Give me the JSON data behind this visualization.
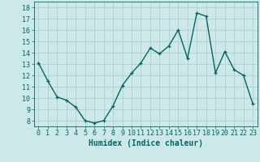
{
  "x": [
    0,
    1,
    2,
    3,
    4,
    5,
    6,
    7,
    8,
    9,
    10,
    11,
    12,
    13,
    14,
    15,
    16,
    17,
    18,
    19,
    20,
    21,
    22,
    23
  ],
  "y": [
    13.1,
    11.5,
    10.1,
    9.8,
    9.2,
    8.0,
    7.8,
    8.0,
    9.3,
    11.1,
    12.2,
    13.1,
    14.4,
    13.9,
    14.6,
    16.0,
    13.5,
    17.5,
    17.2,
    12.2,
    14.1,
    12.5,
    12.0,
    9.5
  ],
  "bg_color": "#cce8e8",
  "line_color": "#006666",
  "marker_color": "#006666",
  "grid_color": "#aacccc",
  "xlabel": "Humidex (Indice chaleur)",
  "ylim": [
    7.5,
    18.5
  ],
  "xlim": [
    -0.5,
    23.5
  ],
  "yticks": [
    8,
    9,
    10,
    11,
    12,
    13,
    14,
    15,
    16,
    17,
    18
  ],
  "xticks": [
    0,
    1,
    2,
    3,
    4,
    5,
    6,
    7,
    8,
    9,
    10,
    11,
    12,
    13,
    14,
    15,
    16,
    17,
    18,
    19,
    20,
    21,
    22,
    23
  ],
  "xlabel_fontsize": 7,
  "tick_fontsize": 6,
  "line_width": 1.0,
  "marker_size": 3
}
